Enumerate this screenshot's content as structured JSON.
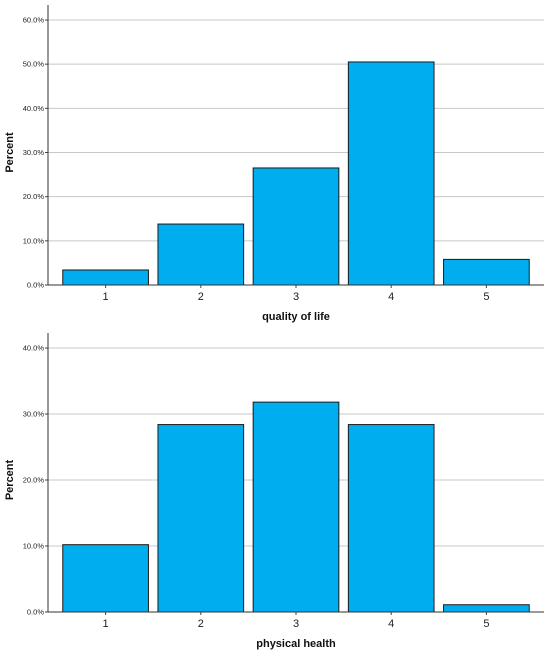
{
  "chart_data": [
    {
      "type": "bar",
      "categories": [
        "1",
        "2",
        "3",
        "4",
        "5"
      ],
      "values": [
        3.4,
        13.8,
        26.5,
        50.5,
        5.8
      ],
      "xlabel": "quality of life",
      "ylabel": "Percent",
      "ylim": [
        0,
        60
      ],
      "yticks": [
        "0.0%",
        "10.0%",
        "20.0%",
        "30.0%",
        "40.0%",
        "50.0%",
        "60.0%"
      ],
      "grid": true,
      "bar_color": "#00aeef",
      "edge_color": "#1a1a1a"
    },
    {
      "type": "bar",
      "categories": [
        "1",
        "2",
        "3",
        "4",
        "5"
      ],
      "values": [
        10.2,
        28.4,
        31.8,
        28.4,
        1.1
      ],
      "xlabel": "physical health",
      "ylabel": "Percent",
      "ylim": [
        0,
        40
      ],
      "yticks": [
        "0.0%",
        "10.0%",
        "20.0%",
        "30.0%",
        "40.0%"
      ],
      "grid": true,
      "bar_color": "#00aeef",
      "edge_color": "#1a1a1a"
    }
  ]
}
